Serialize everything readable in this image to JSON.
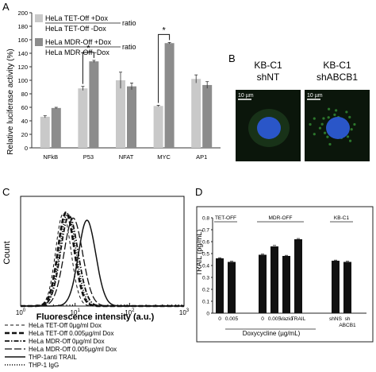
{
  "panels": {
    "A": "A",
    "B": "B",
    "C": "C",
    "D": "D"
  },
  "colors": {
    "light_bar": "#c9c9c9",
    "dark_bar": "#8c8c8c",
    "d_bar": "#111111",
    "cell_bg": "#0b160b",
    "nucleus": "#2a56c8",
    "gfp": "#3ba03b"
  },
  "panel_b": {
    "images": [
      {
        "title": "KB-C1",
        "subtitle": "shNT",
        "scale": "10 µm",
        "signal": "low"
      },
      {
        "title": "KB-C1",
        "subtitle": "shABCB1",
        "scale": "10 µm",
        "signal": "high"
      }
    ]
  },
  "chart_data": [
    {
      "panel": "A",
      "type": "bar",
      "ylabel": "Relative luciferase activity (%)",
      "ylim": [
        0,
        200
      ],
      "yticks": [
        0,
        20,
        40,
        60,
        80,
        100,
        120,
        140,
        160,
        180,
        200
      ],
      "categories": [
        "NFkB",
        "P53",
        "NFAT",
        "MYC",
        "AP1"
      ],
      "legend": [
        {
          "top": "HeLa TET-Off +Dox",
          "bottom": "HeLa TET-Off -Dox",
          "suffix": "ratio"
        },
        {
          "top": "HeLa MDR-Off +Dox",
          "bottom": "HeLa MDR-Off -Dox",
          "suffix": "ratio"
        }
      ],
      "series": [
        {
          "name": "HeLa TET-Off +Dox / HeLa TET-Off -Dox ratio",
          "color": "#c9c9c9",
          "values": [
            46,
            88,
            100,
            62,
            102
          ],
          "errors": [
            1.5,
            3,
            12,
            1,
            6
          ]
        },
        {
          "name": "HeLa MDR-Off +Dox / HeLa MDR-Off -Dox ratio",
          "color": "#8c8c8c",
          "values": [
            59,
            128,
            91,
            155,
            93
          ],
          "errors": [
            1,
            1.5,
            5,
            1,
            5
          ]
        }
      ],
      "significance": [
        {
          "category": "P53",
          "label": "*"
        },
        {
          "category": "MYC",
          "label": "*"
        }
      ]
    },
    {
      "panel": "C",
      "type": "line",
      "xlabel": "Fluorescence intensity (a.u.)",
      "ylabel": "Count",
      "x_scale": "log",
      "xlim": [
        1,
        1000
      ],
      "xticks": [
        {
          "value": 1,
          "label": "10",
          "exp": "0"
        },
        {
          "value": 10,
          "label": "10",
          "exp": "1"
        },
        {
          "value": 100,
          "label": "10",
          "exp": "2"
        },
        {
          "value": 1000,
          "label": "10",
          "exp": "3"
        }
      ],
      "series": [
        {
          "name": "HeLa TET-Off 0µg/ml Dox",
          "style": "dashed",
          "peak": 6.2,
          "width": 0.14,
          "height": 0.84
        },
        {
          "name": "HeLa TET-Off 0.005µg/ml Dox",
          "style": "thickdash",
          "peak": 7.0,
          "width": 0.15,
          "height": 0.85
        },
        {
          "name": "HeLa MDR-Off 0µg/ml Dox",
          "style": "dashdot",
          "peak": 8.0,
          "width": 0.16,
          "height": 0.82
        },
        {
          "name": "HeLa MDR-Off 0.005µg/ml Dox",
          "style": "longdash",
          "peak": 9.5,
          "width": 0.17,
          "height": 0.8
        },
        {
          "name": "THP-1anti TRAIL",
          "style": "solid",
          "peak": 17.0,
          "width": 0.16,
          "height": 0.78
        },
        {
          "name": "THP-1 IgG",
          "style": "dotted",
          "peak": 7.5,
          "width": 0.15,
          "height": 0.84
        }
      ]
    },
    {
      "panel": "D",
      "type": "bar",
      "ylabel": "TRAIL (pg/mL)",
      "ylim": [
        0,
        0.8
      ],
      "yticks": [
        0,
        0.1,
        0.2,
        0.3,
        0.4,
        0.5,
        0.6,
        0.7,
        0.8
      ],
      "groups": [
        {
          "label": "TET-OFF",
          "categories": [
            "0",
            "0.005"
          ],
          "values": [
            0.46,
            0.43
          ]
        },
        {
          "label": "MDR-OFF",
          "categories": [
            "0",
            "0.005",
            "Vazio",
            "TRAIL"
          ],
          "values": [
            0.49,
            0.56,
            0.48,
            0.62
          ]
        },
        {
          "label": "KB-C1",
          "categories": [
            "shNS",
            "sh ABCB1"
          ],
          "values": [
            0.44,
            0.43
          ]
        }
      ],
      "errors": [
        0.005,
        0.005,
        0.005,
        0.008,
        0.005,
        0.006,
        0.005,
        0.005
      ],
      "xaxis_label": "Doxycycline (µg/mL)"
    }
  ]
}
